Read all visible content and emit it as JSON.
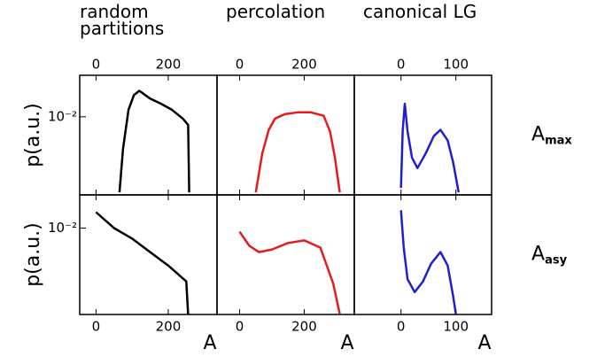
{
  "chart_data": [
    {
      "type": "line",
      "title": "random partitions",
      "ylabel": "p(a.u.)",
      "color": "#000000",
      "log_scale": true,
      "x": [
        65,
        75,
        90,
        105,
        120,
        150,
        180,
        210,
        240,
        255,
        258
      ],
      "values": [
        0.00108,
        0.0039,
        0.0123,
        0.019,
        0.0215,
        0.0171,
        0.0147,
        0.0123,
        0.0095,
        0.0079,
        0.00108
      ],
      "xlim": [
        -45,
        335
      ],
      "xticks": [
        0,
        200
      ],
      "ylim": [
        0.001,
        0.034
      ],
      "yticks": [
        {
          "value": 0.01,
          "label": "10⁻²"
        }
      ]
    },
    {
      "type": "line",
      "title": "percolation",
      "color": "#e41a1c",
      "log_scale": true,
      "x": [
        50,
        70,
        90,
        110,
        140,
        180,
        220,
        260,
        280,
        295,
        310
      ],
      "values": [
        0.00108,
        0.0034,
        0.0068,
        0.0095,
        0.0108,
        0.0114,
        0.0114,
        0.0103,
        0.0065,
        0.003,
        0.00108
      ],
      "xlim": [
        -70,
        355
      ],
      "xticks": [
        0,
        200
      ],
      "ylim": [
        0.001,
        0.034
      ],
      "yticks": []
    },
    {
      "type": "line",
      "title": "canonical LG",
      "row_label": {
        "main": "A",
        "sub": "max"
      },
      "color": "#1f1fd0",
      "log_scale": true,
      "x": [
        0,
        3,
        7,
        12,
        20,
        30,
        45,
        60,
        72,
        85,
        95,
        105
      ],
      "values": [
        0.00123,
        0.0065,
        0.0147,
        0.0065,
        0.003,
        0.0022,
        0.0034,
        0.0057,
        0.0068,
        0.005,
        0.0026,
        0.00108
      ],
      "xlim": [
        -85,
        165
      ],
      "xticks": [
        0,
        100
      ],
      "ylim": [
        0.001,
        0.034
      ],
      "yticks": []
    },
    {
      "type": "line",
      "ylabel": "p(a.u.)",
      "xlabel": "A",
      "color": "#000000",
      "log_scale": true,
      "x": [
        0,
        50,
        100,
        150,
        200,
        250,
        255
      ],
      "values": [
        0.0158,
        0.01,
        0.0074,
        0.005,
        0.0034,
        0.00215,
        0.00084
      ],
      "xlim": [
        -45,
        335
      ],
      "xticks": [
        0,
        200
      ],
      "ylim": [
        0.00083,
        0.026
      ],
      "yticks": [
        {
          "value": 0.01,
          "label": "10⁻²"
        }
      ]
    },
    {
      "type": "line",
      "xlabel": "A",
      "color": "#e41a1c",
      "log_scale": true,
      "x": [
        0,
        30,
        60,
        100,
        150,
        200,
        250,
        290,
        310
      ],
      "values": [
        0.009,
        0.006,
        0.005,
        0.0054,
        0.0065,
        0.007,
        0.0057,
        0.002,
        0.00084
      ],
      "xlim": [
        -70,
        355
      ],
      "xticks": [
        0,
        200
      ],
      "ylim": [
        0.00083,
        0.026
      ],
      "yticks": []
    },
    {
      "type": "line",
      "xlabel": "A",
      "row_label": {
        "main": "A",
        "sub": "asy"
      },
      "color": "#1f1fd0",
      "log_scale": true,
      "x": [
        0,
        5,
        12,
        25,
        40,
        55,
        72,
        85,
        95,
        100
      ],
      "values": [
        0.0167,
        0.0057,
        0.0023,
        0.00158,
        0.00215,
        0.0036,
        0.005,
        0.0034,
        0.0014,
        0.00084
      ],
      "xlim": [
        -85,
        165
      ],
      "xticks": [
        0,
        100
      ],
      "ylim": [
        0.00083,
        0.026
      ],
      "yticks": []
    }
  ]
}
